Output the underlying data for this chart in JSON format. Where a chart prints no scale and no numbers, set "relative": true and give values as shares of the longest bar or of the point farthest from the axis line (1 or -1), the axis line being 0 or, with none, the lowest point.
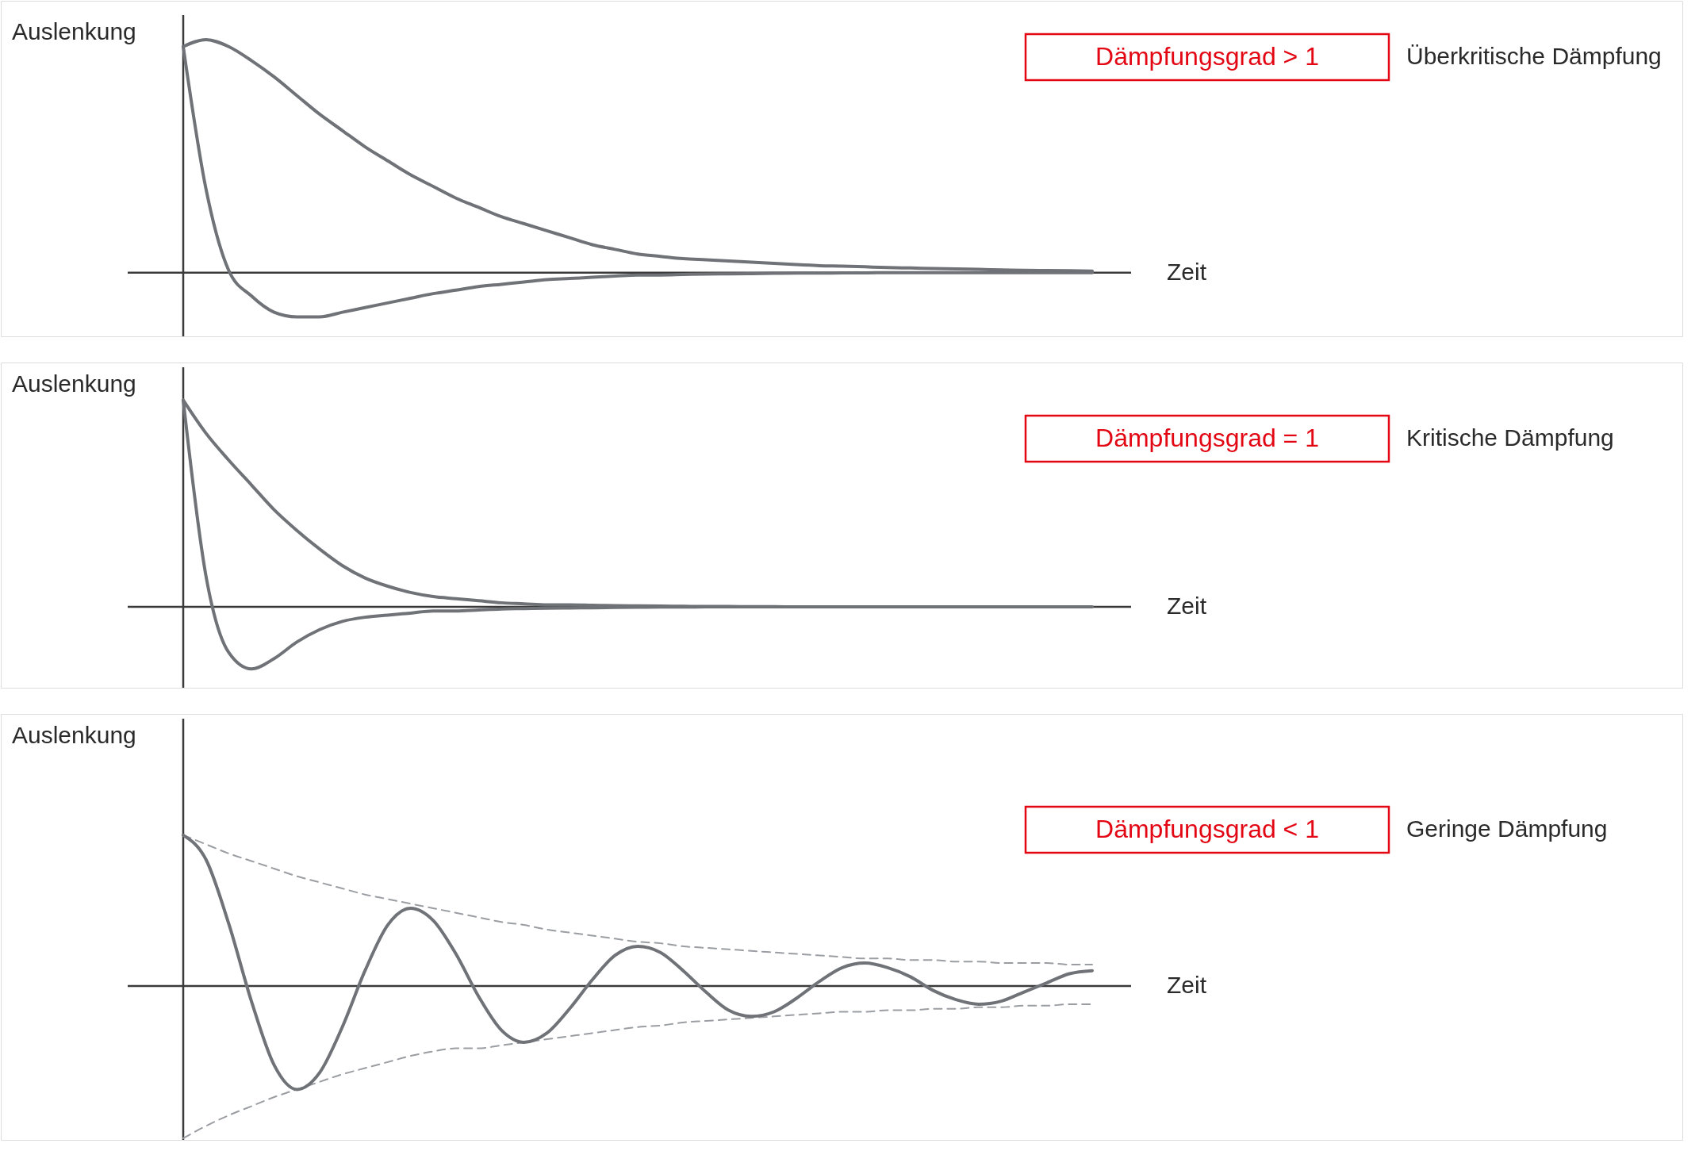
{
  "chart_data": [
    {
      "type": "line",
      "relative": true,
      "xlabel": "Zeit",
      "ylabel": "Auslenkung",
      "annotations": [
        "Dämpfungsgrad > 1",
        "Überkritische Dämpfung"
      ],
      "categories": [
        null,
        null,
        null,
        null,
        null,
        null,
        null,
        null,
        null,
        null,
        null,
        null,
        null,
        null,
        null,
        null,
        null,
        null,
        null,
        null,
        null,
        null,
        null,
        null,
        null,
        null,
        null,
        null,
        null,
        null,
        null,
        null,
        null,
        null,
        null,
        null,
        null,
        null,
        null,
        null,
        null
      ],
      "series": [
        {
          "color": "#6f7277",
          "values": [
            0.97,
            1.0,
            0.97,
            0.91,
            0.84,
            0.76,
            0.68,
            0.61,
            0.54,
            0.48,
            0.42,
            0.37,
            0.32,
            0.28,
            0.24,
            0.21,
            0.18,
            0.15,
            0.12,
            0.1,
            0.08,
            0.07,
            0.06,
            0.055,
            0.05,
            0.045,
            0.04,
            0.035,
            0.03,
            0.028,
            0.025,
            0.022,
            0.02,
            0.018,
            0.016,
            0.014,
            0.012,
            0.01,
            0.009,
            0.008,
            0.007
          ]
        },
        {
          "color": "#6f7277",
          "values": [
            0.97,
            0.36,
            0.01,
            -0.1,
            -0.17,
            -0.19,
            -0.19,
            -0.17,
            -0.15,
            -0.13,
            -0.11,
            -0.09,
            -0.075,
            -0.06,
            -0.05,
            -0.04,
            -0.03,
            -0.025,
            -0.02,
            -0.015,
            -0.01,
            -0.01,
            -0.008,
            -0.006,
            -0.005,
            -0.004,
            -0.003,
            -0.002,
            -0.002,
            -0.001,
            -0.001,
            0,
            0,
            0,
            0,
            0,
            0,
            0,
            0,
            0,
            0
          ]
        }
      ]
    },
    {
      "type": "line",
      "relative": true,
      "xlabel": "Zeit",
      "ylabel": "Auslenkung",
      "annotations": [
        "Dämpfungsgrad = 1",
        "Kritische Dämpfung"
      ],
      "categories": [
        null,
        null,
        null,
        null,
        null,
        null,
        null,
        null,
        null,
        null,
        null,
        null,
        null,
        null,
        null,
        null,
        null,
        null,
        null,
        null,
        null,
        null,
        null,
        null,
        null,
        null,
        null,
        null,
        null,
        null,
        null,
        null,
        null,
        null,
        null,
        null,
        null,
        null,
        null,
        null,
        null
      ],
      "series": [
        {
          "color": "#6f7277",
          "values": [
            1.0,
            0.84,
            0.71,
            0.59,
            0.47,
            0.37,
            0.28,
            0.2,
            0.14,
            0.1,
            0.07,
            0.05,
            0.04,
            0.03,
            0.02,
            0.015,
            0.01,
            0.01,
            0.008,
            0.006,
            0.005,
            0.004,
            0.003,
            0.002,
            0.002,
            0.001,
            0.001,
            0,
            0,
            0,
            0,
            0,
            0,
            0,
            0,
            0,
            0,
            0,
            0,
            0,
            0
          ]
        },
        {
          "color": "#6f7277",
          "values": [
            1.0,
            0.15,
            -0.22,
            -0.3,
            -0.25,
            -0.17,
            -0.11,
            -0.07,
            -0.05,
            -0.04,
            -0.03,
            -0.02,
            -0.02,
            -0.015,
            -0.01,
            -0.008,
            -0.006,
            -0.005,
            -0.004,
            -0.003,
            -0.002,
            -0.001,
            -0.001,
            0,
            0,
            0,
            0,
            0,
            0,
            0,
            0,
            null,
            null,
            null,
            null,
            null,
            null,
            null,
            null,
            null,
            null
          ]
        }
      ]
    },
    {
      "type": "line",
      "relative": true,
      "xlabel": "Zeit",
      "ylabel": "Auslenkung",
      "annotations": [
        "Dämpfungsgrad < 1",
        "Geringe Dämpfung"
      ],
      "categories": [
        null,
        null,
        null,
        null,
        null,
        null,
        null,
        null,
        null,
        null,
        null,
        null,
        null,
        null,
        null,
        null,
        null,
        null,
        null,
        null,
        null,
        null,
        null,
        null,
        null,
        null,
        null,
        null,
        null,
        null,
        null,
        null,
        null,
        null,
        null,
        null,
        null,
        null,
        null,
        null,
        null
      ],
      "series": [
        {
          "color": "#9a9da2",
          "line_style": "dashed",
          "values": [
            0.99,
            0.93,
            0.87,
            0.82,
            0.77,
            0.72,
            0.68,
            0.64,
            0.6,
            0.57,
            0.54,
            0.51,
            0.48,
            0.45,
            0.42,
            0.4,
            0.37,
            0.35,
            0.33,
            0.31,
            0.29,
            0.28,
            0.26,
            0.25,
            0.24,
            0.23,
            0.22,
            0.21,
            0.2,
            0.19,
            0.18,
            0.18,
            0.17,
            0.17,
            0.16,
            0.16,
            0.15,
            0.15,
            0.15,
            0.14,
            0.14
          ]
        },
        {
          "color": "#9a9da2",
          "line_style": "dashed",
          "values": [
            -1.0,
            -0.92,
            -0.85,
            -0.79,
            -0.73,
            -0.68,
            -0.63,
            -0.58,
            -0.54,
            -0.5,
            -0.46,
            -0.43,
            -0.41,
            -0.41,
            -0.39,
            -0.37,
            -0.35,
            -0.33,
            -0.31,
            -0.29,
            -0.27,
            -0.26,
            -0.24,
            -0.23,
            -0.22,
            -0.21,
            -0.2,
            -0.19,
            -0.18,
            -0.17,
            -0.17,
            -0.16,
            -0.16,
            -0.15,
            -0.15,
            -0.14,
            -0.14,
            -0.13,
            -0.13,
            -0.12,
            -0.12
          ]
        },
        {
          "color": "#6f7277",
          "line_style": "solid",
          "values": [
            0.99,
            0.83,
            0.41,
            -0.1,
            -0.52,
            -0.68,
            -0.57,
            -0.27,
            0.1,
            0.4,
            0.51,
            0.43,
            0.21,
            -0.07,
            -0.29,
            -0.37,
            -0.31,
            -0.15,
            0.04,
            0.2,
            0.26,
            0.22,
            0.1,
            -0.04,
            -0.16,
            -0.2,
            -0.17,
            -0.08,
            0.03,
            0.12,
            0.15,
            0.12,
            0.06,
            -0.03,
            -0.09,
            -0.12,
            -0.1,
            -0.04,
            0.02,
            0.08,
            0.1
          ]
        }
      ]
    }
  ]
}
